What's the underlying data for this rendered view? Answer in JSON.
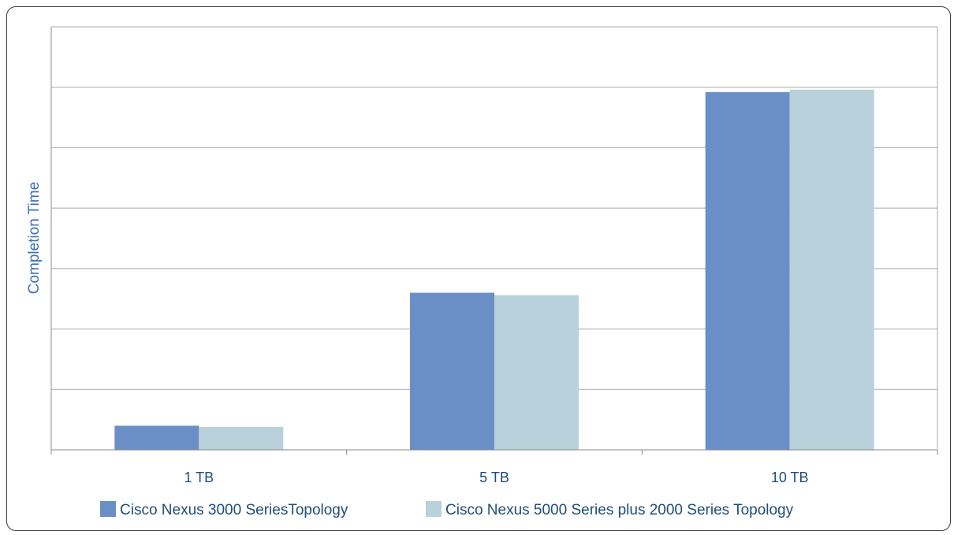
{
  "chart_data": {
    "type": "bar",
    "title": "",
    "xlabel": "",
    "ylabel": "Completion Time",
    "categories": [
      "1 TB",
      "5 TB",
      "10 TB"
    ],
    "series": [
      {
        "name": "Cisco Nexus 3000 SeriesTopology",
        "values": [
          0.4,
          2.6,
          5.92
        ],
        "color": "#6a8fc6"
      },
      {
        "name": "Cisco Nexus 5000 Series plus 2000 Series Topology",
        "values": [
          0.38,
          2.56,
          5.96
        ],
        "color": "#b8d1db"
      }
    ],
    "ylim": [
      0,
      7
    ],
    "y_gridlines": 7,
    "y_tick_labels_shown": false,
    "grid": true,
    "legend": "bottom"
  }
}
